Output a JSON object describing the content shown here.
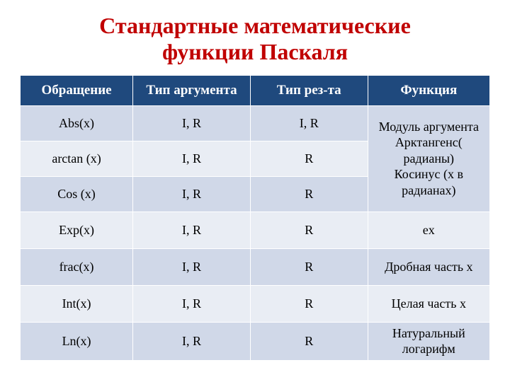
{
  "title_line1": "Стандартные математические",
  "title_line2": "функции Паскаля",
  "title_color": "#c00000",
  "title_fontsize": 32,
  "table": {
    "header_bg": "#1f497d",
    "header_color": "#ffffff",
    "header_fontsize": 19,
    "cell_fontsize": 18,
    "row_odd_bg": "#d0d8e8",
    "row_even_bg": "#e9edf4",
    "columns": [
      "Обращение",
      "Тип аргумента",
      "Тип рез-та",
      "Функция"
    ],
    "rows": [
      {
        "cells": [
          "Abs(x)",
          "I, R",
          "I, R"
        ],
        "desc": "Модуль аргумента",
        "odd": true
      },
      {
        "cells": [
          "arctan (x)",
          "I, R",
          "R"
        ],
        "desc": "Арктангенс( радианы)",
        "odd": false
      },
      {
        "cells": [
          "Cos (x)",
          "I, R",
          "R"
        ],
        "desc": "Косинус (x в радианах)",
        "odd": true
      },
      {
        "cells": [
          "Exp(x)",
          "I, R",
          "R"
        ],
        "desc": "ex",
        "odd": false,
        "desc_own": true
      },
      {
        "cells": [
          "frac(x)",
          "I, R",
          "R"
        ],
        "desc": "Дробная часть x",
        "odd": true,
        "desc_own": true
      },
      {
        "cells": [
          "Int(x)",
          "I, R",
          "R"
        ],
        "desc": "Целая часть x",
        "odd": false,
        "desc_own": true
      },
      {
        "cells": [
          "Ln(x)",
          "I, R",
          "R"
        ],
        "desc": "Натуральный логарифм",
        "odd": true,
        "desc_own": true
      }
    ],
    "merged_rowspan": 3,
    "row_height_merged": 50,
    "row_height_normal": 52
  }
}
